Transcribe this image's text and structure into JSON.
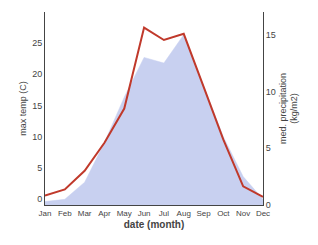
{
  "chart_data": {
    "type": "line",
    "categories": [
      "Jan",
      "Feb",
      "Mar",
      "Apr",
      "May",
      "Jun",
      "Jul",
      "Aug",
      "Sep",
      "Oct",
      "Nov",
      "Dec"
    ],
    "series": [
      {
        "type": "area",
        "axis": "y2",
        "color": "#c8d0f0",
        "values": [
          0.3,
          0.5,
          2.0,
          5.5,
          9.5,
          13.0,
          12.5,
          15.0,
          10.5,
          6.0,
          2.5,
          0.5
        ]
      },
      {
        "type": "line",
        "color": "#c0392b",
        "values": [
          0.5,
          1.5,
          4.5,
          9.0,
          14.5,
          27.5,
          25.5,
          26.5,
          18.0,
          9.5,
          2.0,
          0.3
        ]
      }
    ],
    "xlabel": "date (month)",
    "ylabel": "max temp (C)",
    "y2label": "med. precipitation\n(kg/m2)",
    "ylim": [
      -1,
      30
    ],
    "yticks": [
      0,
      5,
      10,
      15,
      20,
      25
    ],
    "y2lim": [
      0,
      17
    ],
    "y2ticks": [
      0,
      5,
      10,
      15
    ],
    "grid": false
  }
}
